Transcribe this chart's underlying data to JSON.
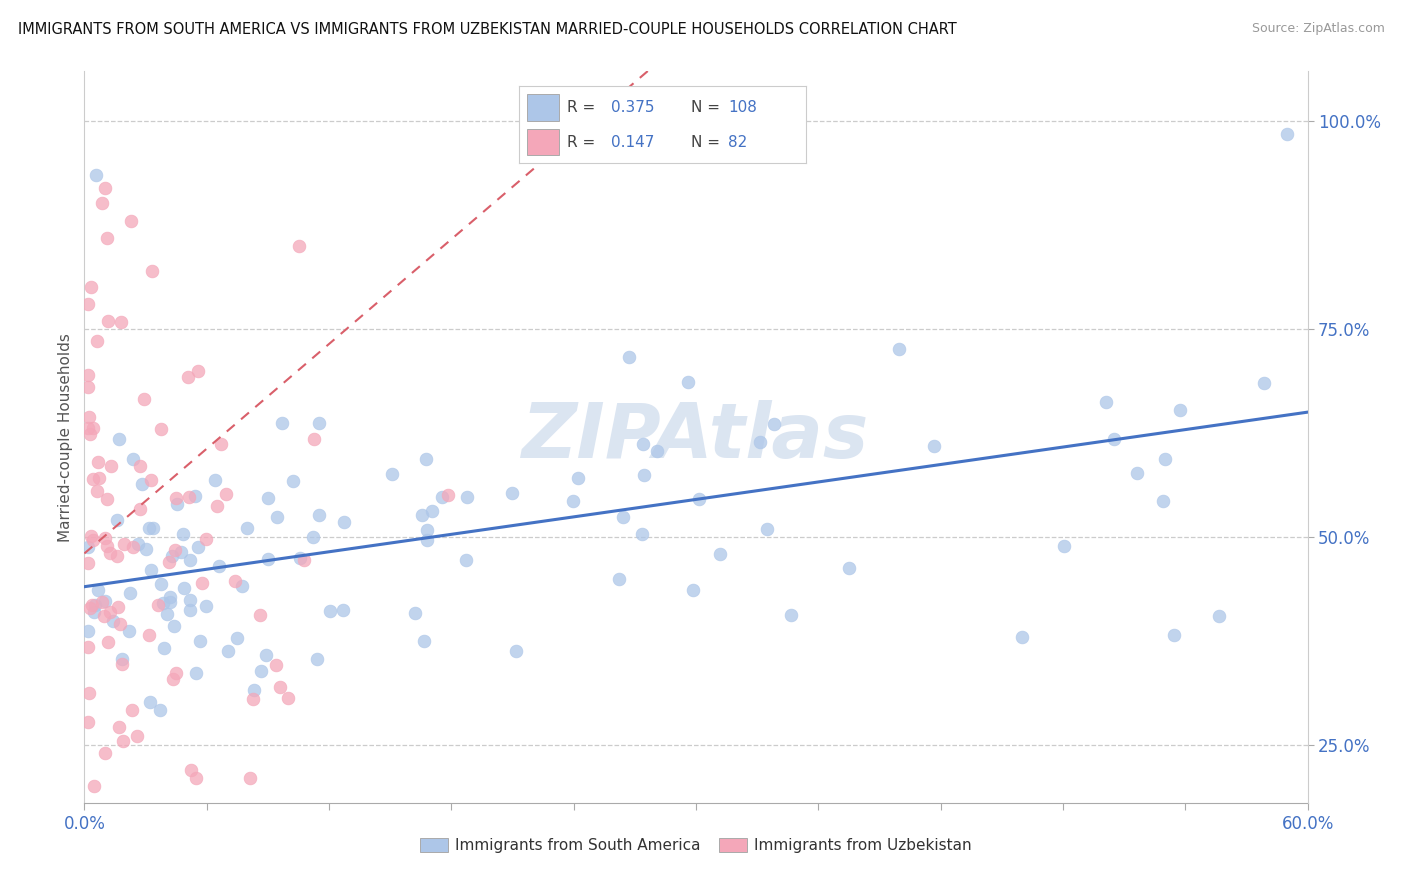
{
  "title": "IMMIGRANTS FROM SOUTH AMERICA VS IMMIGRANTS FROM UZBEKISTAN MARRIED-COUPLE HOUSEHOLDS CORRELATION CHART",
  "source": "Source: ZipAtlas.com",
  "R_blue": 0.375,
  "N_blue": 108,
  "R_pink": 0.147,
  "N_pink": 82,
  "color_blue": "#adc6e8",
  "color_pink": "#f4a7b9",
  "line_color_blue": "#4472c4",
  "line_color_pink": "#d95f6a",
  "watermark": "ZIPAtlas",
  "watermark_color": "#ccdaec",
  "legend_label_blue": "Immigrants from South America",
  "legend_label_pink": "Immigrants from Uzbekistan",
  "xmin": 0.0,
  "xmax": 0.6,
  "ymin": 0.18,
  "ymax": 1.06,
  "yticks": [
    0.25,
    0.5,
    0.75,
    1.0
  ],
  "ylabel": "Married-couple Households"
}
